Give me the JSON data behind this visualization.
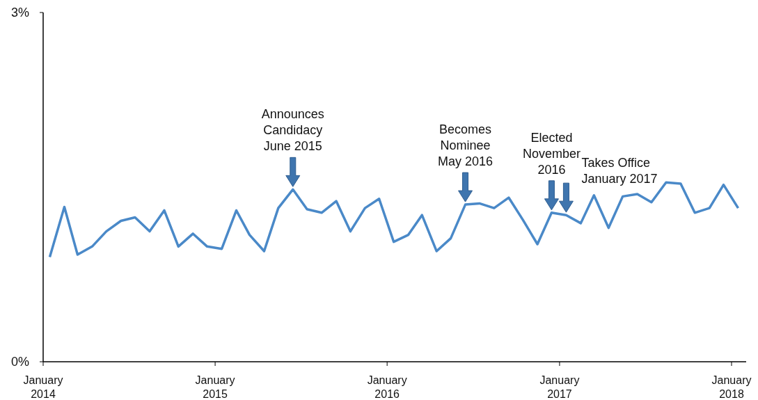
{
  "chart_data": {
    "type": "line",
    "x": [
      "2014-01-15",
      "2014-02-15",
      "2014-03-15",
      "2014-04-15",
      "2014-05-15",
      "2014-06-15",
      "2014-07-15",
      "2014-08-15",
      "2014-09-15",
      "2014-10-15",
      "2014-11-15",
      "2014-12-15",
      "2015-01-15",
      "2015-02-15",
      "2015-03-15",
      "2015-04-15",
      "2015-05-15",
      "2015-06-15",
      "2015-07-15",
      "2015-08-15",
      "2015-09-15",
      "2015-10-15",
      "2015-11-15",
      "2015-12-15",
      "2016-01-15",
      "2016-02-15",
      "2016-03-15",
      "2016-04-15",
      "2016-05-15",
      "2016-06-15",
      "2016-07-15",
      "2016-08-15",
      "2016-09-15",
      "2016-10-15",
      "2016-11-15",
      "2016-12-15",
      "2017-01-15",
      "2017-02-15",
      "2017-03-15",
      "2017-04-15",
      "2017-05-15",
      "2017-06-15",
      "2017-07-15",
      "2017-08-15",
      "2017-09-15",
      "2017-10-15",
      "2017-11-15",
      "2017-12-15",
      "2018-01-15"
    ],
    "series": [
      {
        "color": "#4a89c8",
        "values": [
          0.9,
          1.33,
          0.92,
          0.99,
          1.12,
          1.21,
          1.24,
          1.12,
          1.3,
          0.99,
          1.1,
          0.99,
          0.97,
          1.3,
          1.09,
          0.95,
          1.32,
          1.48,
          1.31,
          1.28,
          1.38,
          1.12,
          1.32,
          1.4,
          1.03,
          1.09,
          1.26,
          0.95,
          1.06,
          1.35,
          1.36,
          1.32,
          1.41,
          1.22,
          1.01,
          1.28,
          1.26,
          1.19,
          1.43,
          1.15,
          1.42,
          1.44,
          1.37,
          1.54,
          1.53,
          1.28,
          1.32,
          1.52,
          1.32
        ]
      }
    ],
    "xlim": [
      "2014-01-01",
      "2018-02-01"
    ],
    "xticks": [
      {
        "value": "2014-01-01",
        "label": "January\n2014"
      },
      {
        "value": "2015-01-01",
        "label": "January\n2015"
      },
      {
        "value": "2016-01-01",
        "label": "January\n2016"
      },
      {
        "value": "2017-01-01",
        "label": "January\n2017"
      },
      {
        "value": "2018-01-01",
        "label": "January\n2018"
      }
    ],
    "ylim": [
      0,
      3
    ],
    "yticks": [
      {
        "value": 0,
        "label": "0%"
      },
      {
        "value": 3,
        "label": "3%"
      }
    ],
    "grid": false,
    "marker": "none",
    "line_style": "solid",
    "annotations": [
      {
        "text": "Announces\nCandidacy\nJune 2015",
        "x": "2015-06-15",
        "y": 1.48
      },
      {
        "text": "Becomes\nNominee\nMay 2016",
        "x": "2016-06-15",
        "y": 1.35
      },
      {
        "text": "Elected\nNovember\n2016",
        "x": "2016-12-15",
        "y": 1.28
      },
      {
        "text": "Takes Office\nJanuary 2017",
        "x": "2017-01-15",
        "y": 1.26
      }
    ]
  }
}
